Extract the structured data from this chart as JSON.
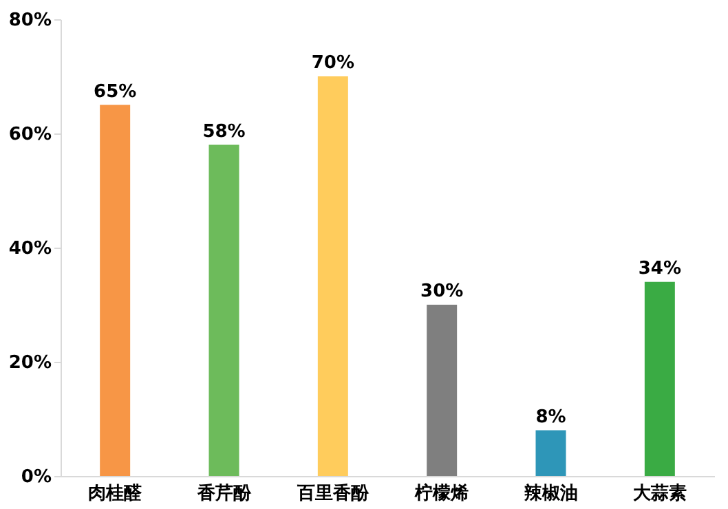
{
  "chart_data": {
    "type": "bar",
    "categories": [
      "肉桂醛",
      "香芹酚",
      "百里香酚",
      "柠檬烯",
      "辣椒油",
      "大蒜素"
    ],
    "values": [
      65,
      58,
      70,
      30,
      8,
      34
    ],
    "colors": [
      "#f79646",
      "#6dbb5b",
      "#ffcc5c",
      "#7f7f7f",
      "#2e96b8",
      "#3aab44"
    ],
    "value_labels": [
      "65%",
      "58%",
      "70%",
      "30%",
      "8%",
      "34%"
    ],
    "ylim": [
      0,
      80
    ],
    "yticks": [
      {
        "value": 0,
        "label": "0%"
      },
      {
        "value": 20,
        "label": "20%"
      },
      {
        "value": 40,
        "label": "40%"
      },
      {
        "value": 60,
        "label": "60%"
      },
      {
        "value": 80,
        "label": "80%"
      }
    ],
    "grid": false
  }
}
